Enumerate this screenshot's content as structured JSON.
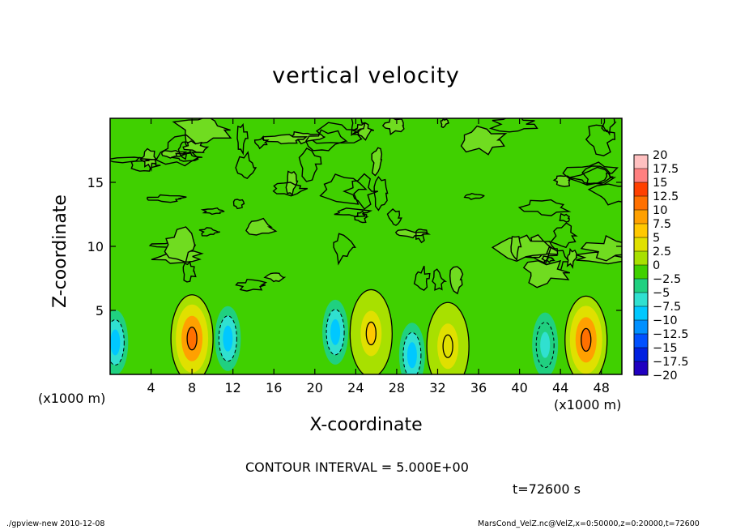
{
  "chart_data": {
    "type": "heatmap",
    "title": "vertical velocity",
    "xlabel": "X-coordinate",
    "ylabel": "Z-coordinate",
    "x_unit_left": "(x1000 m)",
    "x_unit_right": "(x1000 m)",
    "xlim": [
      0,
      50
    ],
    "ylim": [
      0,
      20
    ],
    "x_ticks": [
      "4",
      "8",
      "12",
      "16",
      "20",
      "24",
      "28",
      "32",
      "36",
      "40",
      "44",
      "48"
    ],
    "y_ticks": [
      "5",
      "10",
      "15"
    ],
    "contour_interval": "CONTOUR INTERVAL = 5.000E+00",
    "time": "t=72600 s",
    "colorbar": {
      "labels": [
        "20",
        "17.5",
        "15",
        "12.5",
        "10",
        "7.5",
        "5",
        "2.5",
        "0",
        "−2.5",
        "−5",
        "−7.5",
        "−10",
        "−12.5",
        "−15",
        "−17.5",
        "−20"
      ],
      "colors": [
        "#ffc0c0",
        "#ff8080",
        "#ff4000",
        "#ff7000",
        "#ffa000",
        "#ffc800",
        "#e0e000",
        "#a8e000",
        "#40d000",
        "#20d080",
        "#30e0d0",
        "#00c8ff",
        "#0090ff",
        "#0050ff",
        "#0020e0",
        "#2000c0",
        "#7000b0"
      ]
    },
    "updrafts": [
      {
        "x": 8,
        "z": 2.8,
        "peak": 12.5
      },
      {
        "x": 25.5,
        "z": 3.2,
        "peak": 7.5
      },
      {
        "x": 33,
        "z": 2.2,
        "peak": 5
      },
      {
        "x": 46.5,
        "z": 2.7,
        "peak": 12.5
      }
    ],
    "downdrafts": [
      {
        "x": 0.5,
        "z": 2.5,
        "peak": -7.5
      },
      {
        "x": 11.5,
        "z": 2.8,
        "peak": -7.5
      },
      {
        "x": 22,
        "z": 3.3,
        "peak": -7.5
      },
      {
        "x": 29.5,
        "z": 1.5,
        "peak": -7.5
      },
      {
        "x": 42.5,
        "z": 2.3,
        "peak": -5
      }
    ],
    "grid": false
  },
  "footer": {
    "left": "./gpview-new  2010-12-08",
    "right": "MarsCond_VelZ.nc@VelZ,x=0:50000,z=0:20000,t=72600"
  }
}
